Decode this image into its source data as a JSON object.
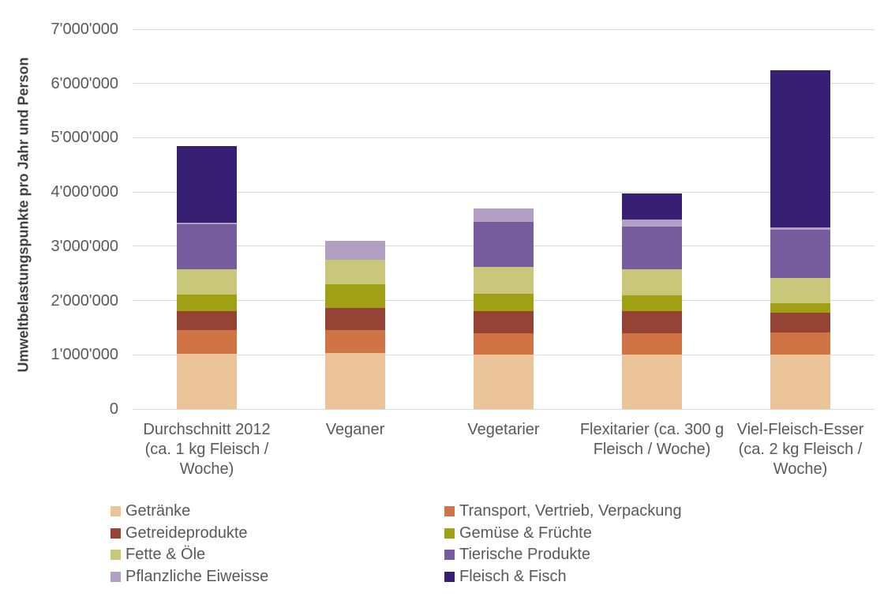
{
  "chart_data": {
    "type": "bar",
    "stacked": true,
    "ylabel": "Umweltbelastungspunkte pro Jahr und Person",
    "xlabel": "",
    "grid": true,
    "legend_position": "bottom",
    "legend_columns": 2,
    "legend_column_order": [
      [
        0,
        2,
        4,
        6
      ],
      [
        1,
        3,
        5,
        7
      ]
    ],
    "y_axis": {
      "min": 0,
      "max": 7000000,
      "tick_step": 1000000,
      "tick_labels": [
        "0",
        "1'000'000",
        "2'000'000",
        "3'000'000",
        "4'000'000",
        "5'000'000",
        "6'000'000",
        "7'000'000"
      ]
    },
    "categories": [
      "Durchschnitt 2012 (ca. 1 kg Fleisch / Woche)",
      "Veganer",
      "Vegetarier",
      "Flexitarier (ca. 300 g Fleisch / Woche)",
      "Viel-Fleisch-Esser (ca. 2 kg Fleisch / Woche)"
    ],
    "series": [
      {
        "name": "Getränke",
        "color": "#ECC49A",
        "values": [
          1020000,
          1030000,
          1010000,
          1010000,
          1000000
        ]
      },
      {
        "name": "Transport, Vertrieb, Verpackung",
        "color": "#D17445",
        "values": [
          430000,
          430000,
          390000,
          390000,
          410000
        ]
      },
      {
        "name": "Getreideprodukte",
        "color": "#944335",
        "values": [
          360000,
          410000,
          400000,
          400000,
          370000
        ]
      },
      {
        "name": "Gemüse & Früchte",
        "color": "#A0A014",
        "values": [
          300000,
          430000,
          330000,
          290000,
          170000
        ]
      },
      {
        "name": "Fette & Öle",
        "color": "#C9C77A",
        "values": [
          470000,
          450000,
          490000,
          480000,
          460000
        ]
      },
      {
        "name": "Tierische Produkte",
        "color": "#765C9D",
        "values": [
          820000,
          0,
          830000,
          790000,
          900000
        ]
      },
      {
        "name": "Pflanzliche Eiweisse",
        "color": "#B2A0C4",
        "values": [
          40000,
          350000,
          240000,
          130000,
          30000
        ]
      },
      {
        "name": "Fleisch & Fisch",
        "color": "#372074",
        "values": [
          1410000,
          0,
          0,
          480000,
          2900000
        ]
      }
    ],
    "totals": [
      4850000,
      3100000,
      3690000,
      3970000,
      6240000
    ],
    "colors": {
      "gridline": "#D9D9D9",
      "tick_text": "#595959",
      "axis_title_text": "#404040",
      "background": "#FFFFFF"
    }
  }
}
